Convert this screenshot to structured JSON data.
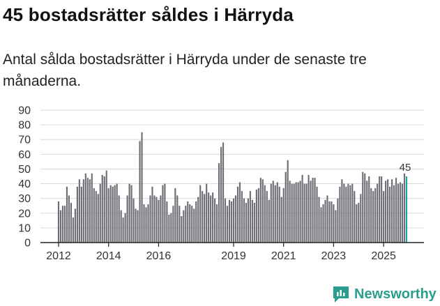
{
  "header": {
    "title": "45 bostadsrätter såldes i Härryda",
    "subtitle": "Antal sålda bostadsrätter i Härryda under de senaste tre månaderna."
  },
  "brand": {
    "name": "Newsworthy"
  },
  "chart_data": {
    "type": "bar",
    "title": "45 bostadsrätter såldes i Härryda",
    "xlabel": "",
    "ylabel": "",
    "ylim": [
      0,
      90
    ],
    "yticks": [
      0,
      10,
      20,
      30,
      40,
      50,
      60,
      70,
      80,
      90
    ],
    "xlim_months": [
      0,
      167
    ],
    "xticks": [
      {
        "label": "2012",
        "month": 0
      },
      {
        "label": "2014",
        "month": 24
      },
      {
        "label": "2016",
        "month": 48
      },
      {
        "label": "2019",
        "month": 84
      },
      {
        "label": "2021",
        "month": 108
      },
      {
        "label": "2023",
        "month": 132
      },
      {
        "label": "2025",
        "month": 156
      }
    ],
    "start": "2012-01",
    "bar_color": "#6e6e76",
    "highlight_color": "#1aa6a0",
    "highlight_label": "45",
    "values": [
      28,
      22,
      25,
      25,
      38,
      32,
      27,
      17,
      23,
      38,
      43,
      38,
      43,
      47,
      44,
      43,
      47,
      37,
      35,
      33,
      40,
      46,
      45,
      49,
      37,
      39,
      38,
      39,
      40,
      32,
      22,
      17,
      20,
      32,
      40,
      39,
      30,
      23,
      22,
      69,
      75,
      26,
      24,
      26,
      32,
      38,
      32,
      31,
      29,
      32,
      39,
      40,
      28,
      19,
      20,
      25,
      37,
      32,
      25,
      18,
      22,
      25,
      28,
      26,
      25,
      23,
      28,
      31,
      39,
      35,
      33,
      40,
      34,
      32,
      34,
      30,
      26,
      54,
      65,
      68,
      30,
      25,
      29,
      28,
      30,
      32,
      38,
      41,
      35,
      30,
      27,
      30,
      35,
      29,
      27,
      36,
      37,
      44,
      43,
      39,
      35,
      29,
      40,
      42,
      39,
      41,
      38,
      31,
      37,
      48,
      56,
      42,
      40,
      40,
      41,
      41,
      42,
      46,
      40,
      40,
      46,
      42,
      44,
      44,
      38,
      31,
      24,
      26,
      29,
      32,
      28,
      28,
      26,
      22,
      30,
      38,
      43,
      40,
      38,
      40,
      39,
      40,
      35,
      26,
      27,
      33,
      48,
      47,
      42,
      45,
      37,
      35,
      37,
      40,
      45,
      45,
      35,
      42,
      43,
      38,
      43,
      39,
      44,
      40,
      41,
      40,
      47,
      45
    ]
  }
}
